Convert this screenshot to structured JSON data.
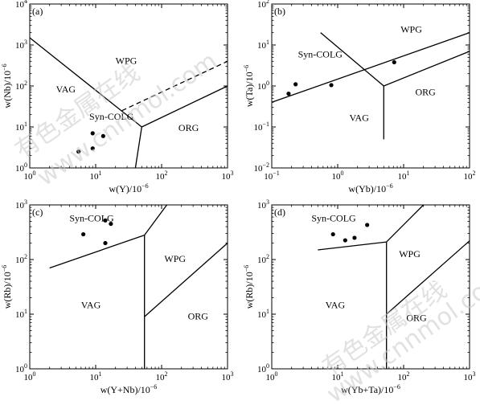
{
  "watermark": {
    "line1": "有色金属在线",
    "line2": "www.cnnmol.com"
  },
  "chart_data": [
    {
      "type": "scatter",
      "panel_label": "(a)",
      "xlabel": "w(Y)/10",
      "ylabel": "w(Nb)/10",
      "exponent_label": "−6",
      "x_scale": "log",
      "y_scale": "log",
      "xlim": [
        1,
        1000
      ],
      "ylim": [
        1,
        10000
      ],
      "x_ticks": [
        1,
        10,
        100,
        1000
      ],
      "y_ticks": [
        1,
        10,
        100,
        1000,
        10000
      ],
      "points": [
        [
          5.5,
          2.5
        ],
        [
          9,
          3
        ],
        [
          9,
          7
        ],
        [
          13,
          6
        ]
      ],
      "boundaries": [
        {
          "style": "solid",
          "points": [
            [
              1,
              1500
            ],
            [
              50,
              10
            ]
          ]
        },
        {
          "style": "solid",
          "points": [
            [
              50,
              10
            ],
            [
              1000,
              100
            ]
          ]
        },
        {
          "style": "solid",
          "points": [
            [
              50,
              10
            ],
            [
              40,
              1
            ]
          ]
        },
        {
          "style": "dashed",
          "points": [
            [
              25,
              25
            ],
            [
              1000,
              400
            ]
          ]
        }
      ],
      "regions": [
        {
          "name": "WPG",
          "x": 20,
          "y": 350
        },
        {
          "name": "VAG",
          "x": 2.5,
          "y": 70
        },
        {
          "name": "Syn-COLG",
          "x": 8,
          "y": 15
        },
        {
          "name": "ORG",
          "x": 180,
          "y": 8
        }
      ]
    },
    {
      "type": "scatter",
      "panel_label": "(b)",
      "xlabel": "w(Yb)/10",
      "ylabel": "w(Ta)/10",
      "exponent_label": "−6",
      "x_scale": "log",
      "y_scale": "log",
      "xlim": [
        0.1,
        100
      ],
      "ylim": [
        0.01,
        100
      ],
      "x_ticks": [
        0.1,
        1,
        10,
        100
      ],
      "y_ticks": [
        0.01,
        0.1,
        1,
        10,
        100
      ],
      "points": [
        [
          0.18,
          0.65
        ],
        [
          0.23,
          1.1
        ],
        [
          0.8,
          1.05
        ],
        [
          7.2,
          3.8
        ]
      ],
      "boundaries": [
        {
          "style": "solid",
          "points": [
            [
              0.1,
              0.4
            ],
            [
              100,
              20
            ]
          ]
        },
        {
          "style": "solid",
          "points": [
            [
              0.55,
              20
            ],
            [
              5,
              1
            ]
          ]
        },
        {
          "style": "solid",
          "points": [
            [
              5,
              1
            ],
            [
              100,
              7
            ]
          ]
        },
        {
          "style": "solid",
          "points": [
            [
              5,
              1
            ],
            [
              5,
              0.05
            ]
          ]
        }
      ],
      "regions": [
        {
          "name": "WPG",
          "x": 9,
          "y": 20
        },
        {
          "name": "Syn-COLG",
          "x": 0.25,
          "y": 5
        },
        {
          "name": "ORG",
          "x": 15,
          "y": 0.6
        },
        {
          "name": "VAG",
          "x": 1.5,
          "y": 0.14
        }
      ]
    },
    {
      "type": "scatter",
      "panel_label": "(c)",
      "xlabel": "w(Y+Nb)/10",
      "ylabel": "w(Rb)/10",
      "exponent_label": "−6",
      "x_scale": "log",
      "y_scale": "log",
      "xlim": [
        1,
        1000
      ],
      "ylim": [
        1,
        1000
      ],
      "x_ticks": [
        1,
        10,
        100,
        1000
      ],
      "y_ticks": [
        1,
        10,
        100,
        1000
      ],
      "points": [
        [
          6.5,
          290
        ],
        [
          14,
          520
        ],
        [
          17,
          450
        ],
        [
          14,
          200
        ]
      ],
      "boundaries": [
        {
          "style": "solid",
          "points": [
            [
              2,
              70
            ],
            [
              55,
              280
            ]
          ]
        },
        {
          "style": "solid",
          "points": [
            [
              55,
              280
            ],
            [
              120,
              1000
            ]
          ]
        },
        {
          "style": "solid",
          "points": [
            [
              55,
              280
            ],
            [
              55,
              1
            ]
          ]
        },
        {
          "style": "solid",
          "points": [
            [
              55,
              9
            ],
            [
              1000,
              200
            ]
          ]
        }
      ],
      "regions": [
        {
          "name": "Syn-COLG",
          "x": 4,
          "y": 500
        },
        {
          "name": "WPG",
          "x": 110,
          "y": 90
        },
        {
          "name": "VAG",
          "x": 6,
          "y": 13
        },
        {
          "name": "ORG",
          "x": 250,
          "y": 8
        }
      ]
    },
    {
      "type": "scatter",
      "panel_label": "(d)",
      "xlabel": "w(Yb+Ta)/10",
      "ylabel": "w(Rb)/10",
      "exponent_label": "−6",
      "x_scale": "log",
      "y_scale": "log",
      "xlim": [
        1,
        1000
      ],
      "ylim": [
        1,
        1000
      ],
      "x_ticks": [
        1,
        10,
        100,
        1000
      ],
      "y_ticks": [
        1,
        10,
        100,
        1000
      ],
      "points": [
        [
          8.5,
          290
        ],
        [
          13,
          225
        ],
        [
          18,
          250
        ],
        [
          28,
          430
        ]
      ],
      "boundaries": [
        {
          "style": "solid",
          "points": [
            [
              5,
              150
            ],
            [
              55,
              210
            ]
          ]
        },
        {
          "style": "solid",
          "points": [
            [
              55,
              210
            ],
            [
              200,
              1000
            ]
          ]
        },
        {
          "style": "solid",
          "points": [
            [
              55,
              210
            ],
            [
              55,
              1
            ]
          ]
        },
        {
          "style": "solid",
          "points": [
            [
              55,
              10
            ],
            [
              1000,
              220
            ]
          ]
        }
      ],
      "regions": [
        {
          "name": "Syn-COLG",
          "x": 4,
          "y": 500
        },
        {
          "name": "WPG",
          "x": 85,
          "y": 110
        },
        {
          "name": "VAG",
          "x": 6.5,
          "y": 13
        },
        {
          "name": "ORG",
          "x": 110,
          "y": 7.5
        }
      ]
    }
  ]
}
